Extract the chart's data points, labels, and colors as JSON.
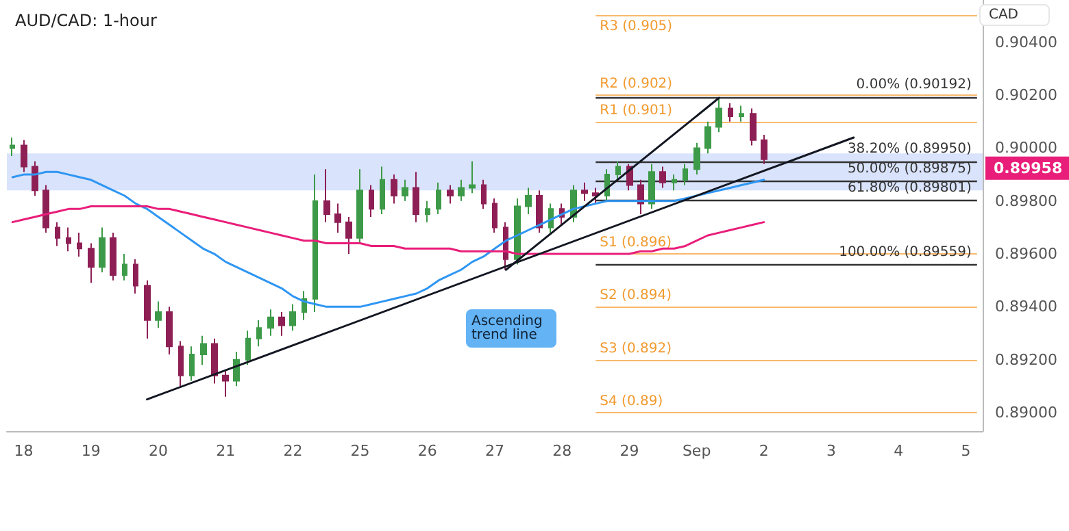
{
  "chart_data": {
    "type": "candlestick",
    "title": "AUD/CAD: 1-hour",
    "ylabel": "CAD",
    "categories": [
      null,
      "18",
      null,
      null,
      null,
      null,
      null,
      "19",
      null,
      null,
      null,
      null,
      null,
      "20",
      null,
      null,
      null,
      null,
      null,
      "21",
      null,
      null,
      null,
      null,
      null,
      "22",
      null,
      null,
      null,
      null,
      null,
      "25",
      null,
      null,
      null,
      null,
      null,
      "26",
      null,
      null,
      null,
      null,
      null,
      "27",
      null,
      null,
      null,
      null,
      null,
      "28",
      null,
      null,
      null,
      null,
      null,
      "29",
      null,
      null,
      null,
      null,
      null,
      "Sep",
      null,
      null,
      null,
      null,
      null,
      "2",
      null,
      null,
      null,
      null,
      null,
      "3",
      null,
      null,
      null,
      null,
      null,
      "4",
      null,
      null,
      null,
      null,
      null,
      "5",
      null
    ],
    "ohlc": [
      [
        0.9,
        0.9004,
        0.8997,
        0.9001
      ],
      [
        0.9001,
        0.9003,
        0.8991,
        0.8993
      ],
      [
        0.8993,
        0.8995,
        0.8982,
        0.8984
      ],
      [
        0.8984,
        0.8986,
        0.8968,
        0.897
      ],
      [
        0.897,
        0.8972,
        0.8963,
        0.8966
      ],
      [
        0.8966,
        0.897,
        0.8961,
        0.8964
      ],
      [
        0.8964,
        0.8968,
        0.8959,
        0.8962
      ],
      [
        0.8962,
        0.8964,
        0.8949,
        0.8955
      ],
      [
        0.8955,
        0.897,
        0.8953,
        0.8966
      ],
      [
        0.8966,
        0.8968,
        0.895,
        0.8952
      ],
      [
        0.8952,
        0.896,
        0.895,
        0.8956
      ],
      [
        0.8956,
        0.8958,
        0.8945,
        0.8948
      ],
      [
        0.8948,
        0.895,
        0.8928,
        0.8935
      ],
      [
        0.8935,
        0.8942,
        0.8932,
        0.8938
      ],
      [
        0.8938,
        0.894,
        0.8922,
        0.8925
      ],
      [
        0.8925,
        0.8927,
        0.891,
        0.8914
      ],
      [
        0.8914,
        0.8925,
        0.8912,
        0.8922
      ],
      [
        0.8922,
        0.8929,
        0.8918,
        0.8926
      ],
      [
        0.8926,
        0.8928,
        0.8911,
        0.8914
      ],
      [
        0.8914,
        0.8916,
        0.8906,
        0.8912
      ],
      [
        0.8912,
        0.8923,
        0.891,
        0.892
      ],
      [
        0.892,
        0.8931,
        0.8918,
        0.8928
      ],
      [
        0.8928,
        0.8935,
        0.8925,
        0.8932
      ],
      [
        0.8932,
        0.8939,
        0.8929,
        0.8936
      ],
      [
        0.8936,
        0.8938,
        0.8929,
        0.8933
      ],
      [
        0.8933,
        0.8941,
        0.8931,
        0.8938
      ],
      [
        0.8938,
        0.8946,
        0.8935,
        0.8943
      ],
      [
        0.8943,
        0.899,
        0.8938,
        0.898
      ],
      [
        0.898,
        0.8992,
        0.8972,
        0.8975
      ],
      [
        0.8975,
        0.8979,
        0.8968,
        0.8972
      ],
      [
        0.8972,
        0.8974,
        0.896,
        0.8966
      ],
      [
        0.8966,
        0.8992,
        0.8964,
        0.8984
      ],
      [
        0.8984,
        0.8986,
        0.8974,
        0.8977
      ],
      [
        0.8977,
        0.8993,
        0.8975,
        0.8988
      ],
      [
        0.8988,
        0.899,
        0.8979,
        0.8982
      ],
      [
        0.8982,
        0.8988,
        0.898,
        0.8985
      ],
      [
        0.8985,
        0.8991,
        0.8972,
        0.8975
      ],
      [
        0.8975,
        0.898,
        0.8972,
        0.8977
      ],
      [
        0.8977,
        0.8987,
        0.8975,
        0.8984
      ],
      [
        0.8984,
        0.8986,
        0.8979,
        0.8982
      ],
      [
        0.8982,
        0.8988,
        0.898,
        0.8985
      ],
      [
        0.8985,
        0.8995,
        0.8983,
        0.8986
      ],
      [
        0.8986,
        0.8988,
        0.8977,
        0.8979
      ],
      [
        0.8979,
        0.8981,
        0.8968,
        0.897
      ],
      [
        0.897,
        0.8972,
        0.8954,
        0.8958
      ],
      [
        0.8958,
        0.8981,
        0.8956,
        0.8978
      ],
      [
        0.8978,
        0.8985,
        0.8975,
        0.8982
      ],
      [
        0.8982,
        0.8984,
        0.8968,
        0.897
      ],
      [
        0.897,
        0.8979,
        0.8968,
        0.8977
      ],
      [
        0.8977,
        0.8979,
        0.8971,
        0.8974
      ],
      [
        0.8974,
        0.8986,
        0.8972,
        0.8984
      ],
      [
        0.8984,
        0.8987,
        0.898,
        0.8983
      ],
      [
        0.8983,
        0.8985,
        0.8979,
        0.8982
      ],
      [
        0.8982,
        0.8992,
        0.898,
        0.899
      ],
      [
        0.899,
        0.8995,
        0.8988,
        0.8993
      ],
      [
        0.8993,
        0.8994,
        0.8984,
        0.8986
      ],
      [
        0.8986,
        0.8988,
        0.8975,
        0.8979
      ],
      [
        0.8979,
        0.8994,
        0.8977,
        0.8991
      ],
      [
        0.8991,
        0.8993,
        0.8985,
        0.8987
      ],
      [
        0.8987,
        0.899,
        0.8984,
        0.8988
      ],
      [
        0.8988,
        0.8994,
        0.8986,
        0.8992
      ],
      [
        0.8992,
        0.9002,
        0.899,
        0.9
      ],
      [
        0.9,
        0.901,
        0.8998,
        0.9008
      ],
      [
        0.9008,
        0.90192,
        0.9006,
        0.9015
      ],
      [
        0.9015,
        0.9017,
        0.901,
        0.9012
      ],
      [
        0.9012,
        0.9016,
        0.901,
        0.9013
      ],
      [
        0.9013,
        0.9015,
        0.9001,
        0.9003
      ],
      [
        0.9003,
        0.9005,
        0.8994,
        0.89958
      ],
      null,
      null,
      null,
      null,
      null,
      null,
      null,
      null,
      null,
      null,
      null,
      null,
      null,
      null,
      null,
      null,
      null,
      null,
      null
    ],
    "series": [
      {
        "type": "line",
        "color": "#2f96f3",
        "values": [
          0.8989,
          0.899,
          0.899,
          0.8991,
          0.8991,
          0.899,
          0.8989,
          0.8988,
          0.8986,
          0.8984,
          0.8982,
          0.8979,
          0.8977,
          0.8974,
          0.8971,
          0.8968,
          0.8965,
          0.8962,
          0.896,
          0.8957,
          0.8955,
          0.8953,
          0.8951,
          0.8949,
          0.8947,
          0.8944,
          0.8942,
          0.8941,
          0.894,
          0.894,
          0.894,
          0.894,
          0.8941,
          0.8942,
          0.8943,
          0.8944,
          0.8945,
          0.8947,
          0.895,
          0.8952,
          0.8954,
          0.8957,
          0.8959,
          0.8962,
          0.8965,
          0.8967,
          0.8969,
          0.8971,
          0.8973,
          0.8975,
          0.8977,
          0.8978,
          0.8979,
          0.898,
          0.898,
          0.898,
          0.898,
          0.898,
          0.898,
          0.898,
          0.8981,
          0.8982,
          0.8983,
          0.8984,
          0.8985,
          0.8986,
          0.8987,
          0.8988,
          null,
          null,
          null,
          null,
          null,
          null,
          null,
          null,
          null,
          null,
          null,
          null,
          null,
          null,
          null,
          null,
          null,
          null,
          null
        ]
      },
      {
        "type": "line",
        "color": "#e91e7a",
        "values": [
          0.8972,
          0.8973,
          0.8974,
          0.8975,
          0.8976,
          0.8977,
          0.8977,
          0.8978,
          0.8978,
          0.8978,
          0.8978,
          0.8978,
          0.8978,
          0.8977,
          0.8977,
          0.8976,
          0.8975,
          0.8974,
          0.8973,
          0.8972,
          0.8971,
          0.897,
          0.8969,
          0.8968,
          0.8967,
          0.8966,
          0.8965,
          0.8965,
          0.8964,
          0.8964,
          0.8964,
          0.8964,
          0.8963,
          0.8963,
          0.8963,
          0.8962,
          0.8962,
          0.8962,
          0.8962,
          0.8962,
          0.8961,
          0.8961,
          0.8961,
          0.8961,
          0.8961,
          0.896,
          0.896,
          0.896,
          0.896,
          0.896,
          0.896,
          0.896,
          0.896,
          0.896,
          0.896,
          0.896,
          0.8961,
          0.8961,
          0.8962,
          0.8962,
          0.8963,
          0.8965,
          0.8967,
          0.8968,
          0.8969,
          0.897,
          0.8971,
          0.8972,
          null,
          null,
          null,
          null,
          null,
          null,
          null,
          null,
          null,
          null,
          null,
          null,
          null,
          null,
          null,
          null,
          null,
          null,
          null
        ]
      },
      {
        "type": "line",
        "color": "#131722",
        "values": [
          null,
          null,
          null,
          null,
          null,
          null,
          null,
          null,
          null,
          null,
          null,
          null,
          0.8905,
          null,
          null,
          null,
          null,
          null,
          null,
          null,
          null,
          null,
          null,
          null,
          null,
          null,
          null,
          null,
          null,
          null,
          null,
          null,
          null,
          null,
          null,
          null,
          null,
          null,
          null,
          null,
          null,
          null,
          null,
          null,
          null,
          null,
          null,
          null,
          null,
          null,
          null,
          null,
          null,
          null,
          null,
          null,
          null,
          null,
          null,
          null,
          null,
          null,
          null,
          null,
          null,
          null,
          null,
          null,
          null,
          null,
          null,
          null,
          null,
          null,
          null,
          0.9004,
          null,
          null,
          null,
          null,
          null,
          null,
          null,
          null,
          null,
          null,
          null
        ]
      },
      {
        "type": "line",
        "color": "#131722",
        "values": [
          null,
          null,
          null,
          null,
          null,
          null,
          null,
          null,
          null,
          null,
          null,
          null,
          null,
          null,
          null,
          null,
          null,
          null,
          null,
          null,
          null,
          null,
          null,
          null,
          null,
          null,
          null,
          null,
          null,
          null,
          null,
          null,
          null,
          null,
          null,
          null,
          null,
          null,
          null,
          null,
          null,
          null,
          null,
          null,
          0.8954,
          null,
          null,
          null,
          null,
          null,
          null,
          null,
          null,
          null,
          null,
          null,
          null,
          null,
          null,
          null,
          null,
          null,
          null,
          0.9019,
          null,
          null,
          null,
          null,
          null,
          null,
          null,
          null,
          null,
          null,
          null,
          null,
          null,
          null,
          null,
          null,
          null,
          null,
          null,
          null,
          null,
          null,
          null
        ]
      }
    ],
    "ylim": [
      0.8893,
      0.9056
    ],
    "yticks": [
      {
        "value": 0.89,
        "label": "0.89000"
      },
      {
        "value": 0.892,
        "label": "0.89200"
      },
      {
        "value": 0.894,
        "label": "0.89400"
      },
      {
        "value": 0.896,
        "label": "0.89600"
      },
      {
        "value": 0.898,
        "label": "0.89800"
      },
      {
        "value": 0.9,
        "label": "0.90000"
      },
      {
        "value": 0.902,
        "label": "0.90200"
      },
      {
        "value": 0.904,
        "label": "0.90400"
      }
    ],
    "ref_lines": [
      {
        "axis": "y",
        "value": 0.905,
        "label": "R3 (0.905)",
        "color": "#f9b96b"
      },
      {
        "axis": "y",
        "value": 0.902,
        "label": "R2 (0.902)",
        "color": "#f9b96b"
      },
      {
        "axis": "y",
        "value": 0.901,
        "label": "R1 (0.901)",
        "color": "#f9b96b"
      },
      {
        "axis": "y",
        "value": 0.896,
        "label": "S1 (0.896)",
        "color": "#f9b96b"
      },
      {
        "axis": "y",
        "value": 0.894,
        "label": "S2 (0.894)",
        "color": "#f9b96b"
      },
      {
        "axis": "y",
        "value": 0.892,
        "label": "S3 (0.892)",
        "color": "#f9b96b"
      },
      {
        "axis": "y",
        "value": 0.89,
        "label": "S4 (0.89)",
        "color": "#f9b96b"
      },
      {
        "axis": "y",
        "value": 0.90192,
        "label": "0.00% (0.90192)",
        "color": "#333333"
      },
      {
        "axis": "y",
        "value": 0.8995,
        "label": "38.20% (0.89950)",
        "color": "#333333"
      },
      {
        "axis": "y",
        "value": 0.89875,
        "label": "50.00% (0.89875)",
        "color": "#333333"
      },
      {
        "axis": "y",
        "value": 0.89801,
        "label": "61.80% (0.89801)",
        "color": "#333333"
      },
      {
        "axis": "y",
        "value": 0.89559,
        "label": "100.00% (0.89559)",
        "color": "#333333"
      }
    ],
    "bands": [
      {
        "axis": "y",
        "from": 0.8984,
        "to": 0.8998,
        "color": "#d9e3fb"
      }
    ],
    "annotations": [
      "Ascending trend line",
      "0.89958"
    ],
    "grid": false
  }
}
